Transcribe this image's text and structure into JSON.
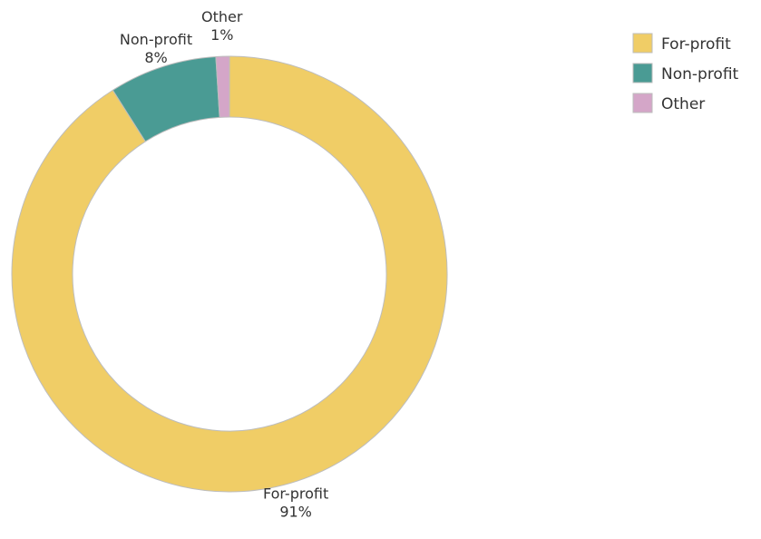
{
  "chart_data": {
    "type": "pie",
    "donut": true,
    "title": "",
    "categories": [
      "For-profit",
      "Non-profit",
      "Other"
    ],
    "values": [
      91,
      8,
      1
    ],
    "labels": [
      "91%",
      "8%",
      "1%"
    ],
    "colors": [
      "#F0CD66",
      "#4A9B94",
      "#D4A6C8"
    ],
    "legend": {
      "placement": "top-right",
      "entries": [
        "For-profit",
        "Non-profit",
        "Other"
      ]
    },
    "start": "top",
    "direction": "clockwise"
  }
}
